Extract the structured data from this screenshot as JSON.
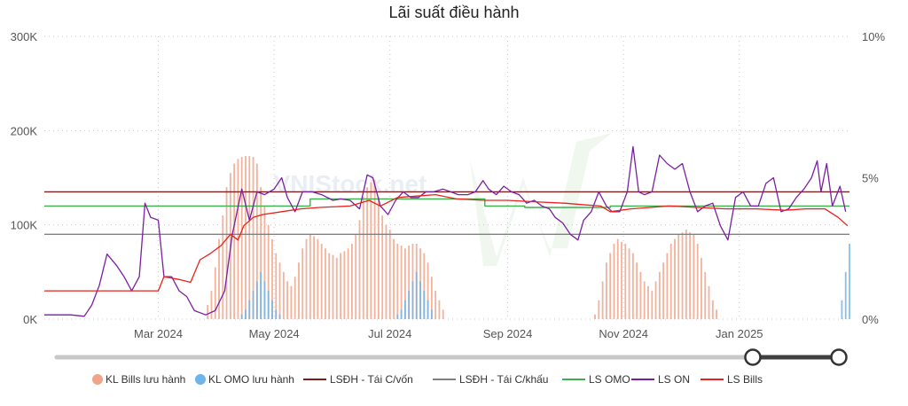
{
  "chart_data": {
    "type": "line",
    "title": "Lãi suất điều hành",
    "x_ticks": [
      "Mar 2024",
      "May 2024",
      "Jul 2024",
      "Sep 2024",
      "Nov 2024",
      "Jan 2025"
    ],
    "y_left_ticks": [
      "0K",
      "100K",
      "200K",
      "300K"
    ],
    "y_right_ticks": [
      "0%",
      "5%",
      "10%"
    ],
    "y_left_range": [
      0,
      300000
    ],
    "y_right_range": [
      0,
      10
    ],
    "x_range": [
      "2024-01-01",
      "2025-02-28"
    ],
    "grid": "dotted",
    "legend_position": "bottom",
    "watermark": "VNIStock.net",
    "series": [
      {
        "name": "KL Bills lưu hành",
        "kind": "bar",
        "axis": "left",
        "color": "#f0a58a"
      },
      {
        "name": "KL OMO lưu hành",
        "kind": "bar",
        "axis": "left",
        "color": "#6fb4ea"
      },
      {
        "name": "LSĐH - Tái C/vốn",
        "kind": "step",
        "axis": "right",
        "color": "#7a1f1f",
        "points": [
          [
            "2024-01-01",
            4.5
          ],
          [
            "2025-02-28",
            4.5
          ]
        ]
      },
      {
        "name": "LSĐH - Tái C/khấu",
        "kind": "step",
        "axis": "right",
        "color": "#808080",
        "points": [
          [
            "2024-01-01",
            3.0
          ],
          [
            "2025-02-28",
            3.0
          ]
        ]
      },
      {
        "name": "LS OMO",
        "kind": "step",
        "axis": "right",
        "color": "#3cb04a",
        "points": [
          [
            "2024-01-01",
            4.0
          ],
          [
            "2024-05-20",
            4.0
          ],
          [
            "2024-05-20",
            4.25
          ],
          [
            "2024-08-20",
            4.25
          ],
          [
            "2024-08-20",
            4.0
          ],
          [
            "2024-09-10",
            4.0
          ],
          [
            "2024-09-10",
            3.95
          ],
          [
            "2024-10-25",
            3.95
          ],
          [
            "2024-10-25",
            4.0
          ],
          [
            "2025-02-28",
            4.0
          ]
        ]
      },
      {
        "name": "LS ON",
        "kind": "line",
        "axis": "right",
        "color": "#7a1fa2",
        "points": [
          [
            "2024-01-01",
            0.15
          ],
          [
            "2024-01-15",
            0.15
          ],
          [
            "2024-01-22",
            0.1
          ],
          [
            "2024-01-26",
            0.5
          ],
          [
            "2024-01-30",
            1.2
          ],
          [
            "2024-02-03",
            2.3
          ],
          [
            "2024-02-08",
            1.9
          ],
          [
            "2024-02-12",
            1.5
          ],
          [
            "2024-02-16",
            1.0
          ],
          [
            "2024-02-20",
            1.5
          ],
          [
            "2024-02-23",
            4.1
          ],
          [
            "2024-02-26",
            3.6
          ],
          [
            "2024-03-01",
            3.5
          ],
          [
            "2024-03-04",
            1.5
          ],
          [
            "2024-03-08",
            1.5
          ],
          [
            "2024-03-12",
            1.0
          ],
          [
            "2024-03-16",
            0.8
          ],
          [
            "2024-03-20",
            0.3
          ],
          [
            "2024-03-26",
            0.15
          ],
          [
            "2024-03-31",
            0.3
          ],
          [
            "2024-04-05",
            1.0
          ],
          [
            "2024-04-09",
            3.0
          ],
          [
            "2024-04-14",
            4.6
          ],
          [
            "2024-04-18",
            3.5
          ],
          [
            "2024-04-22",
            4.5
          ],
          [
            "2024-04-26",
            4.4
          ],
          [
            "2024-05-01",
            4.6
          ],
          [
            "2024-05-05",
            5.0
          ],
          [
            "2024-05-08",
            4.3
          ],
          [
            "2024-05-12",
            3.8
          ],
          [
            "2024-05-16",
            4.5
          ],
          [
            "2024-05-21",
            4.5
          ],
          [
            "2024-05-26",
            4.4
          ],
          [
            "2024-06-01",
            4.2
          ],
          [
            "2024-06-05",
            4.25
          ],
          [
            "2024-06-10",
            4.2
          ],
          [
            "2024-06-15",
            3.9
          ],
          [
            "2024-06-19",
            5.1
          ],
          [
            "2024-06-22",
            5.0
          ],
          [
            "2024-06-26",
            4.0
          ],
          [
            "2024-06-30",
            3.7
          ],
          [
            "2024-07-04",
            4.2
          ],
          [
            "2024-07-08",
            4.5
          ],
          [
            "2024-07-12",
            4.3
          ],
          [
            "2024-07-16",
            4.3
          ],
          [
            "2024-07-20",
            4.5
          ],
          [
            "2024-07-24",
            4.5
          ],
          [
            "2024-07-29",
            4.6
          ],
          [
            "2024-08-02",
            4.5
          ],
          [
            "2024-08-06",
            4.4
          ],
          [
            "2024-08-11",
            4.4
          ],
          [
            "2024-08-15",
            4.5
          ],
          [
            "2024-08-19",
            4.9
          ],
          [
            "2024-08-22",
            4.6
          ],
          [
            "2024-08-26",
            4.4
          ],
          [
            "2024-08-30",
            4.7
          ],
          [
            "2024-09-03",
            4.5
          ],
          [
            "2024-09-07",
            4.4
          ],
          [
            "2024-09-11",
            4.1
          ],
          [
            "2024-09-15",
            4.2
          ],
          [
            "2024-09-19",
            4.0
          ],
          [
            "2024-09-23",
            3.9
          ],
          [
            "2024-09-26",
            3.6
          ],
          [
            "2024-09-30",
            3.4
          ],
          [
            "2024-10-04",
            3.0
          ],
          [
            "2024-10-08",
            2.8
          ],
          [
            "2024-10-11",
            3.5
          ],
          [
            "2024-10-15",
            3.8
          ],
          [
            "2024-10-19",
            4.5
          ],
          [
            "2024-10-23",
            4.0
          ],
          [
            "2024-10-26",
            3.8
          ],
          [
            "2024-10-30",
            3.8
          ],
          [
            "2024-11-03",
            4.5
          ],
          [
            "2024-11-06",
            6.1
          ],
          [
            "2024-11-09",
            4.5
          ],
          [
            "2024-11-12",
            4.4
          ],
          [
            "2024-11-16",
            4.5
          ],
          [
            "2024-11-20",
            5.8
          ],
          [
            "2024-11-24",
            5.5
          ],
          [
            "2024-11-28",
            5.3
          ],
          [
            "2024-12-02",
            5.5
          ],
          [
            "2024-12-06",
            4.5
          ],
          [
            "2024-12-10",
            3.8
          ],
          [
            "2024-12-14",
            4.0
          ],
          [
            "2024-12-18",
            4.1
          ],
          [
            "2024-12-22",
            3.3
          ],
          [
            "2024-12-26",
            2.8
          ],
          [
            "2024-12-30",
            4.3
          ],
          [
            "2025-01-03",
            4.5
          ],
          [
            "2025-01-07",
            4.0
          ],
          [
            "2025-01-11",
            4.0
          ],
          [
            "2025-01-15",
            4.8
          ],
          [
            "2025-01-19",
            5.0
          ],
          [
            "2025-01-23",
            3.8
          ],
          [
            "2025-01-27",
            3.9
          ],
          [
            "2025-01-31",
            4.3
          ],
          [
            "2025-02-04",
            4.6
          ],
          [
            "2025-02-08",
            5.0
          ],
          [
            "2025-02-11",
            5.6
          ],
          [
            "2025-02-13",
            4.5
          ],
          [
            "2025-02-16",
            5.5
          ],
          [
            "2025-02-19",
            4.0
          ],
          [
            "2025-02-23",
            4.7
          ],
          [
            "2025-02-26",
            3.8
          ]
        ]
      },
      {
        "name": "LS Bills",
        "kind": "line",
        "axis": "right",
        "color": "#e8211c",
        "points": [
          [
            "2024-01-01",
            1.0
          ],
          [
            "2024-02-24",
            1.0
          ],
          [
            "2024-03-01",
            1.0
          ],
          [
            "2024-03-04",
            1.5
          ],
          [
            "2024-03-12",
            1.4
          ],
          [
            "2024-03-18",
            1.3
          ],
          [
            "2024-03-23",
            2.1
          ],
          [
            "2024-03-28",
            2.3
          ],
          [
            "2024-04-03",
            2.6
          ],
          [
            "2024-04-08",
            3.0
          ],
          [
            "2024-04-12",
            2.8
          ],
          [
            "2024-04-15",
            3.3
          ],
          [
            "2024-04-20",
            3.6
          ],
          [
            "2024-04-25",
            3.7
          ],
          [
            "2024-05-05",
            3.8
          ],
          [
            "2024-05-15",
            3.9
          ],
          [
            "2024-05-25",
            3.95
          ],
          [
            "2024-06-10",
            4.0
          ],
          [
            "2024-06-15",
            4.1
          ],
          [
            "2024-06-20",
            4.2
          ],
          [
            "2024-06-26",
            4.0
          ],
          [
            "2024-07-05",
            4.3
          ],
          [
            "2024-07-15",
            4.35
          ],
          [
            "2024-07-25",
            4.4
          ],
          [
            "2024-08-05",
            4.25
          ],
          [
            "2024-08-20",
            4.2
          ],
          [
            "2024-09-01",
            4.2
          ],
          [
            "2024-09-15",
            4.15
          ],
          [
            "2024-10-01",
            4.1
          ],
          [
            "2024-10-10",
            4.05
          ],
          [
            "2024-10-20",
            4.0
          ],
          [
            "2024-10-25",
            3.8
          ],
          [
            "2024-11-05",
            3.9
          ],
          [
            "2024-11-15",
            3.95
          ],
          [
            "2024-11-25",
            4.0
          ],
          [
            "2024-12-10",
            3.95
          ],
          [
            "2024-12-25",
            3.9
          ],
          [
            "2025-01-10",
            3.9
          ],
          [
            "2025-01-25",
            3.85
          ],
          [
            "2025-02-05",
            3.9
          ],
          [
            "2025-02-15",
            3.9
          ],
          [
            "2025-02-22",
            3.6
          ],
          [
            "2025-02-27",
            3.3
          ]
        ]
      }
    ],
    "bills_bars": {
      "start": "2024-01-01",
      "step_days": 2,
      "values": [
        0,
        0,
        0,
        0,
        0,
        0,
        0,
        0,
        0,
        0,
        0,
        0,
        0,
        0,
        0,
        0,
        0,
        0,
        0,
        0,
        0,
        0,
        0,
        0,
        0,
        0,
        0,
        0,
        0,
        0,
        0,
        0,
        0,
        0,
        0,
        0,
        0,
        0,
        0,
        0,
        0,
        0,
        0,
        15000,
        30000,
        55000,
        85000,
        110000,
        140000,
        155000,
        165000,
        170000,
        172000,
        173000,
        173000,
        172000,
        165000,
        140000,
        120000,
        100000,
        85000,
        70000,
        60000,
        50000,
        40000,
        35000,
        45000,
        60000,
        75000,
        85000,
        90000,
        88000,
        85000,
        80000,
        75000,
        70000,
        68000,
        65000,
        70000,
        72000,
        75000,
        80000,
        90000,
        105000,
        130000,
        140000,
        145000,
        148000,
        130000,
        110000,
        100000,
        95000,
        85000,
        80000,
        78000,
        75000,
        78000,
        80000,
        80000,
        75000,
        70000,
        60000,
        45000,
        30000,
        20000,
        10000,
        0,
        0,
        0,
        0,
        0,
        0,
        0,
        0,
        0,
        0,
        0,
        0,
        0,
        0,
        0,
        0,
        0,
        0,
        0,
        0,
        0,
        0,
        0,
        0,
        0,
        0,
        0,
        0,
        0,
        0,
        0,
        0,
        0,
        0,
        0,
        0,
        0,
        0,
        0,
        5000,
        20000,
        40000,
        60000,
        70000,
        80000,
        85000,
        82000,
        80000,
        75000,
        70000,
        60000,
        50000,
        40000,
        35000,
        30000,
        40000,
        50000,
        60000,
        70000,
        80000,
        85000,
        90000,
        92000,
        95000,
        92000,
        90000,
        80000,
        65000,
        50000,
        35000,
        20000,
        10000,
        0,
        0,
        0,
        0,
        0,
        0,
        0,
        0,
        0,
        0,
        0,
        0,
        0,
        0,
        0,
        0,
        0,
        0,
        0,
        0,
        0,
        0,
        0,
        0,
        0,
        0,
        0,
        0,
        0,
        0,
        0,
        0,
        0,
        0,
        0,
        0
      ]
    },
    "omo_bars": {
      "start": "2024-01-01",
      "step_days": 2,
      "values": [
        0,
        0,
        0,
        0,
        0,
        0,
        0,
        0,
        0,
        0,
        0,
        0,
        0,
        0,
        0,
        0,
        0,
        0,
        0,
        0,
        0,
        0,
        0,
        0,
        0,
        0,
        0,
        0,
        0,
        0,
        0,
        0,
        0,
        0,
        0,
        0,
        0,
        0,
        0,
        0,
        0,
        0,
        0,
        0,
        0,
        0,
        0,
        0,
        0,
        0,
        0,
        0,
        5000,
        10000,
        20000,
        30000,
        40000,
        50000,
        40000,
        30000,
        20000,
        10000,
        5000,
        0,
        0,
        0,
        0,
        0,
        0,
        0,
        0,
        0,
        0,
        0,
        0,
        0,
        0,
        0,
        0,
        0,
        0,
        0,
        0,
        0,
        0,
        0,
        0,
        0,
        0,
        0,
        0,
        0,
        0,
        5000,
        10000,
        20000,
        30000,
        40000,
        50000,
        40000,
        30000,
        20000,
        10000,
        0,
        0,
        0,
        0,
        0,
        0,
        0,
        0,
        0,
        0,
        0,
        0,
        0,
        0,
        0,
        0,
        0,
        0,
        0,
        0,
        0,
        0,
        0,
        0,
        0,
        0,
        0,
        0,
        0,
        0,
        0,
        0,
        0,
        0,
        0,
        0,
        0,
        0,
        0,
        0,
        0,
        0,
        0,
        0,
        0,
        0,
        0,
        0,
        0,
        0,
        0,
        0,
        0,
        0,
        0,
        0,
        0,
        0,
        0,
        0,
        0,
        0,
        0,
        0,
        0,
        0,
        0,
        0,
        0,
        0,
        0,
        0,
        0,
        0,
        0,
        0,
        0,
        0,
        0,
        0,
        0,
        0,
        0,
        0,
        0,
        0,
        0,
        0,
        0,
        0,
        0,
        0,
        0,
        0,
        0,
        0,
        0,
        0,
        0,
        0,
        0,
        0,
        0,
        0,
        0,
        0,
        0,
        20000,
        50000,
        80000,
        120000,
        160000,
        190000,
        205000,
        210000,
        205000,
        190000,
        150000,
        110000,
        80000,
        60000,
        40000,
        20000,
        10000,
        5000
      ]
    }
  },
  "legend": [
    {
      "label": "KL Bills lưu hành",
      "shape": "circle",
      "color": "#f0a58a"
    },
    {
      "label": "KL OMO lưu hành",
      "shape": "circle",
      "color": "#6fb4ea"
    },
    {
      "label": "LSĐH - Tái C/vốn",
      "shape": "line",
      "color": "#7a1f1f"
    },
    {
      "label": "LSĐH - Tái C/khấu",
      "shape": "line",
      "color": "#808080"
    },
    {
      "label": "LS OMO",
      "shape": "line",
      "color": "#3cb04a"
    },
    {
      "label": "LS ON",
      "shape": "line",
      "color": "#7a1fa2"
    },
    {
      "label": "LS Bills",
      "shape": "line",
      "color": "#e8211c"
    }
  ],
  "slider": {
    "range_start": 0.89,
    "range_end": 1.0
  }
}
